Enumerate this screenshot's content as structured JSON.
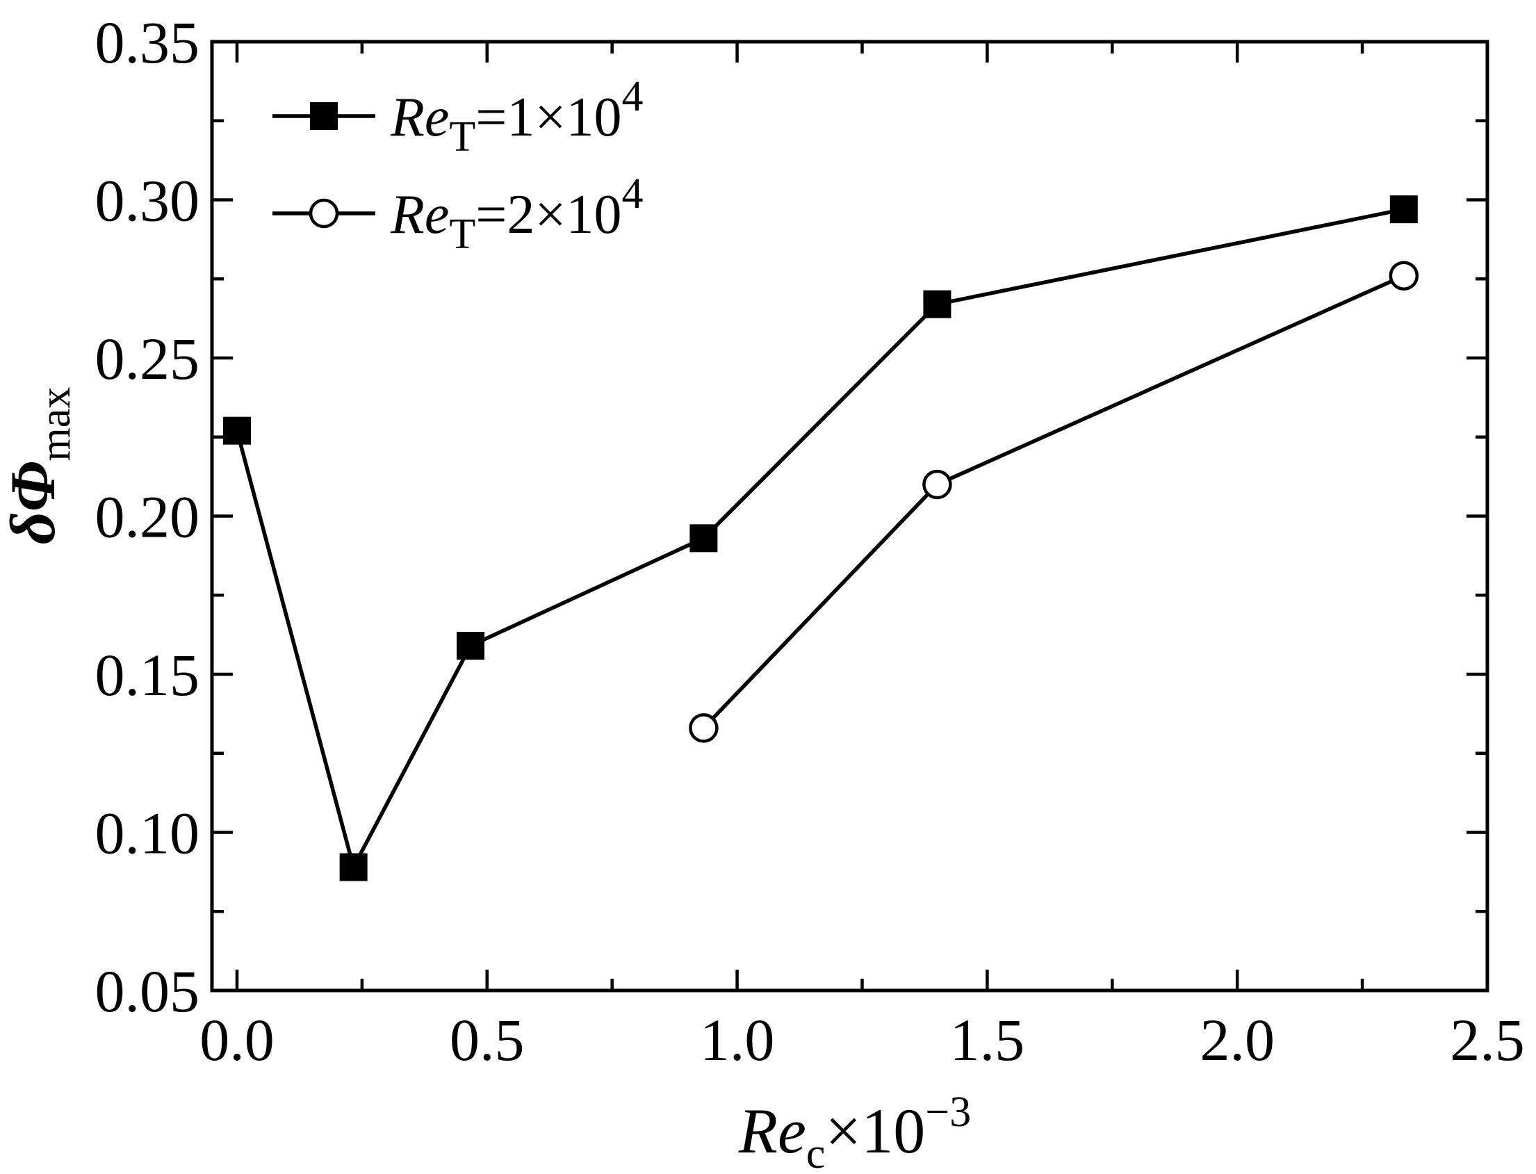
{
  "chart_data": {
    "type": "line",
    "xlabel": {
      "main": "Re",
      "sub": "c",
      "suffix": "×10",
      "sup": "−3"
    },
    "ylabel": {
      "main": "δΦ",
      "sub": "max"
    },
    "xlim": [
      -0.05,
      2.5
    ],
    "ylim": [
      0.05,
      0.35
    ],
    "x_ticks": [
      "0.0",
      "0.5",
      "1.0",
      "1.5",
      "2.0",
      "2.5"
    ],
    "x_tick_values": [
      0.0,
      0.5,
      1.0,
      1.5,
      2.0,
      2.5
    ],
    "x_minor_step": 0.25,
    "y_ticks": [
      "0.05",
      "0.10",
      "0.15",
      "0.20",
      "0.25",
      "0.30",
      "0.35"
    ],
    "y_tick_values": [
      0.05,
      0.1,
      0.15,
      0.2,
      0.25,
      0.3,
      0.35
    ],
    "y_minor_step": 0.025,
    "grid": false,
    "legend_position": "top-left",
    "series": [
      {
        "legend": {
          "main": "Re",
          "sub": "T",
          "eq": "=1×10",
          "sup": "4"
        },
        "marker": "filled-square",
        "color": "#000000",
        "x": [
          0.0,
          0.233,
          0.467,
          0.933,
          1.4,
          2.333
        ],
        "y": [
          0.227,
          0.089,
          0.159,
          0.193,
          0.267,
          0.297
        ]
      },
      {
        "legend": {
          "main": "Re",
          "sub": "T",
          "eq": "=2×10",
          "sup": "4"
        },
        "marker": "open-circle",
        "color": "#000000",
        "x": [
          0.933,
          1.4,
          2.333
        ],
        "y": [
          0.133,
          0.21,
          0.276
        ]
      }
    ]
  }
}
